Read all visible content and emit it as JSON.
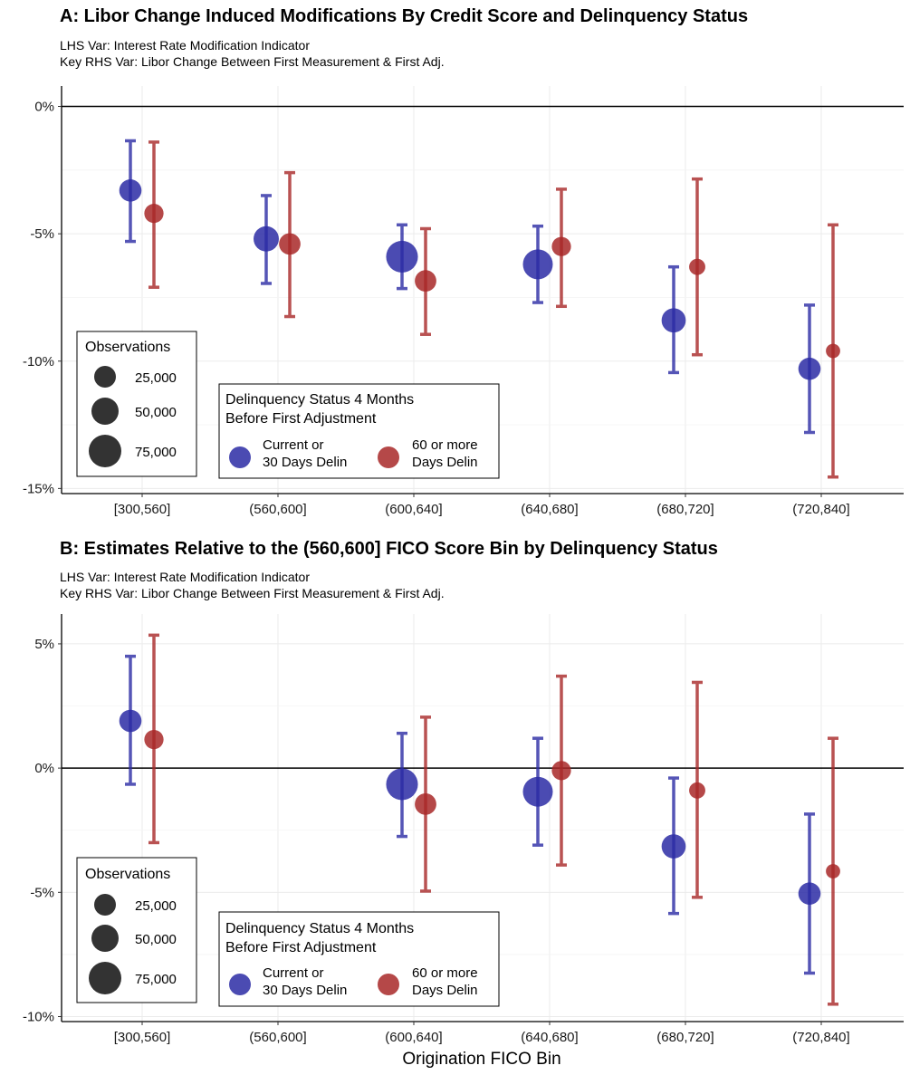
{
  "colors": {
    "current": "#2b2ba5",
    "delin": "#a82828",
    "obs": "#333333"
  },
  "xlabel": "Origination FICO Bin",
  "legend": {
    "obs_title": "Observations",
    "obs_items": [
      "25,000",
      "50,000",
      "75,000"
    ],
    "delin_title_1": "Delinquency Status 4 Months",
    "delin_title_2": "Before First Adjustment",
    "current_1": "Current or",
    "current_2": "30 Days Delin",
    "delin_1": "60 or more",
    "delin_2": "Days Delin"
  },
  "chart_data": [
    {
      "type": "scatter",
      "title": "A: Libor Change Induced Modifications By Credit Score and Delinquency Status",
      "subtitle_1": "LHS Var: Interest Rate Modification Indicator",
      "subtitle_2": "Key RHS Var: Libor Change Between First Measurement & First Adj.",
      "categories": [
        "[300,560]",
        "(560,600]",
        "(600,640]",
        "(640,680]",
        "(680,720]",
        "(720,840]"
      ],
      "yticks": [
        0,
        -5,
        -10,
        -15
      ],
      "ytick_labels": [
        "0%",
        "-5%",
        "-10%",
        "-15%"
      ],
      "ylim": [
        -15.2,
        0.8
      ],
      "series": [
        {
          "name": "Current or 30 Days Delin",
          "values": [
            -3.3,
            -5.2,
            -5.9,
            -6.2,
            -8.4,
            -10.3
          ],
          "lower": [
            -5.3,
            -6.95,
            -7.15,
            -7.7,
            -10.45,
            -12.8
          ],
          "upper": [
            -1.35,
            -3.5,
            -4.65,
            -4.7,
            -6.3,
            -7.8
          ],
          "obs": [
            30000,
            38000,
            55000,
            50000,
            35000,
            30000
          ]
        },
        {
          "name": "60 or more Days Delin",
          "values": [
            -4.2,
            -5.4,
            -6.85,
            -5.5,
            -6.3,
            -9.6
          ],
          "lower": [
            -7.1,
            -8.25,
            -8.95,
            -7.85,
            -9.75,
            -14.55
          ],
          "upper": [
            -1.4,
            -2.6,
            -4.8,
            -3.25,
            -2.85,
            -4.65
          ],
          "obs": [
            22000,
            28000,
            28000,
            22000,
            14000,
            9000
          ]
        }
      ]
    },
    {
      "type": "scatter",
      "title": "B: Estimates Relative to the (560,600] FICO Score Bin by Delinquency Status",
      "subtitle_1": "LHS Var: Interest Rate Modification Indicator",
      "subtitle_2": "Key RHS Var: Libor Change Between First Measurement & First Adj.",
      "categories": [
        "[300,560]",
        "(560,600]",
        "(600,640]",
        "(640,680]",
        "(680,720]",
        "(720,840]"
      ],
      "yticks": [
        5,
        0,
        -5,
        -10
      ],
      "ytick_labels": [
        "5%",
        "0%",
        "-5%",
        "-10%"
      ],
      "ylim": [
        -10.2,
        6.2
      ],
      "series": [
        {
          "name": "Current or 30 Days Delin",
          "values": [
            1.9,
            null,
            -0.65,
            -0.95,
            -3.15,
            -5.05
          ],
          "lower": [
            -0.65,
            null,
            -2.75,
            -3.1,
            -5.85,
            -8.25
          ],
          "upper": [
            4.5,
            null,
            1.4,
            1.2,
            -0.4,
            -1.85
          ],
          "obs": [
            30000,
            null,
            55000,
            50000,
            35000,
            30000
          ]
        },
        {
          "name": "60 or more Days Delin",
          "values": [
            1.15,
            null,
            -1.45,
            -0.1,
            -0.9,
            -4.15
          ],
          "lower": [
            -3.0,
            null,
            -4.95,
            -3.9,
            -5.2,
            -9.5
          ],
          "upper": [
            5.35,
            null,
            2.05,
            3.7,
            3.45,
            1.2
          ],
          "obs": [
            22000,
            null,
            28000,
            22000,
            14000,
            9000
          ]
        }
      ]
    }
  ]
}
